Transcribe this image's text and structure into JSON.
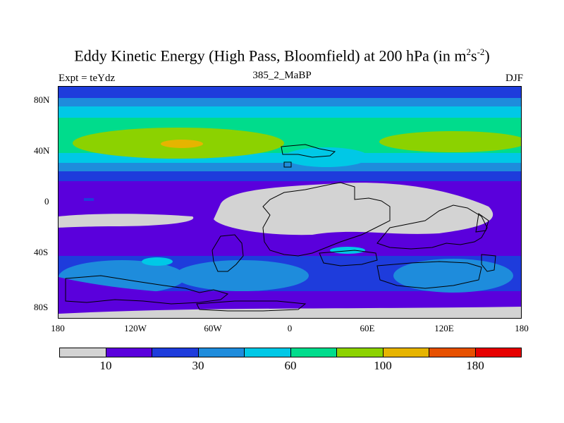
{
  "title": {
    "prefix": "Eddy Kinetic Energy (High Pass, Bloomfield) at 200 hPa (in m",
    "sup1": "2",
    "mid": "s",
    "sup2": "-2",
    "suffix": ")"
  },
  "subtitle": "385_2_MaBP",
  "left_label": "Expt = teYdz",
  "right_label": "DJF",
  "axes": {
    "y_ticks": [
      "80N",
      "40N",
      "0",
      "40S",
      "80S"
    ],
    "x_ticks": [
      "180",
      "120W",
      "60W",
      "0",
      "60E",
      "120E",
      "180"
    ]
  },
  "colorbar": {
    "colors": [
      "#d3d3d3",
      "#5a00dc",
      "#1e3cdc",
      "#1e8cdc",
      "#00c8e6",
      "#00dc8c",
      "#8cd200",
      "#e6b400",
      "#e65000",
      "#e60000"
    ],
    "labels": [
      "10",
      "30",
      "60",
      "100",
      "180"
    ]
  }
}
